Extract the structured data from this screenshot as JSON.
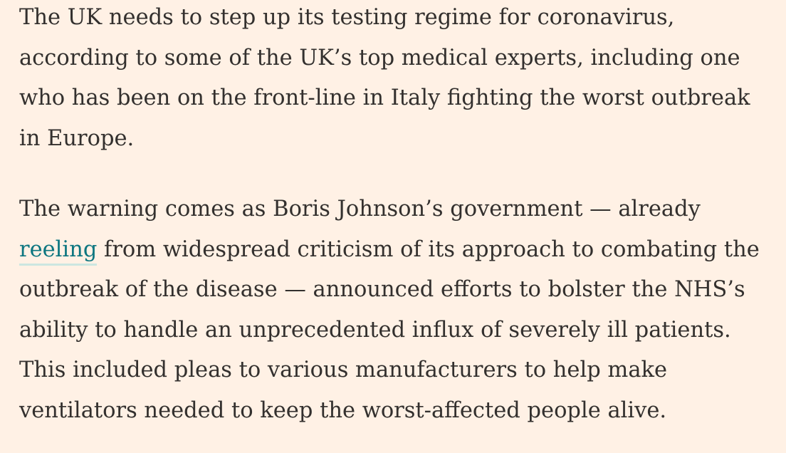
{
  "article": {
    "paragraph_1": {
      "lines": [
        "The UK needs to step up its testing regime for coronavirus,",
        "according to some of the UK’s top medical experts, including one",
        "who has been on the front-line in Italy fighting the worst outbreak",
        "in Europe."
      ]
    },
    "paragraph_2": {
      "line_1": "The warning comes as Boris Johnson’s government — already",
      "link_text": "reeling",
      "line_2_rest": " from widespread criticism of its approach to combating the",
      "lines_rest": [
        "outbreak of the disease — announced efforts to bolster the NHS’s",
        "ability to handle an unprecedented influx of severely ill patients.",
        "This included pleas to various manufacturers to help make",
        "ventilators needed to keep the worst-affected people alive."
      ]
    }
  },
  "colors": {
    "background": "#fff1e5",
    "text": "#33302e",
    "link": "#0d7680",
    "link_underline": "#cce6e0"
  }
}
